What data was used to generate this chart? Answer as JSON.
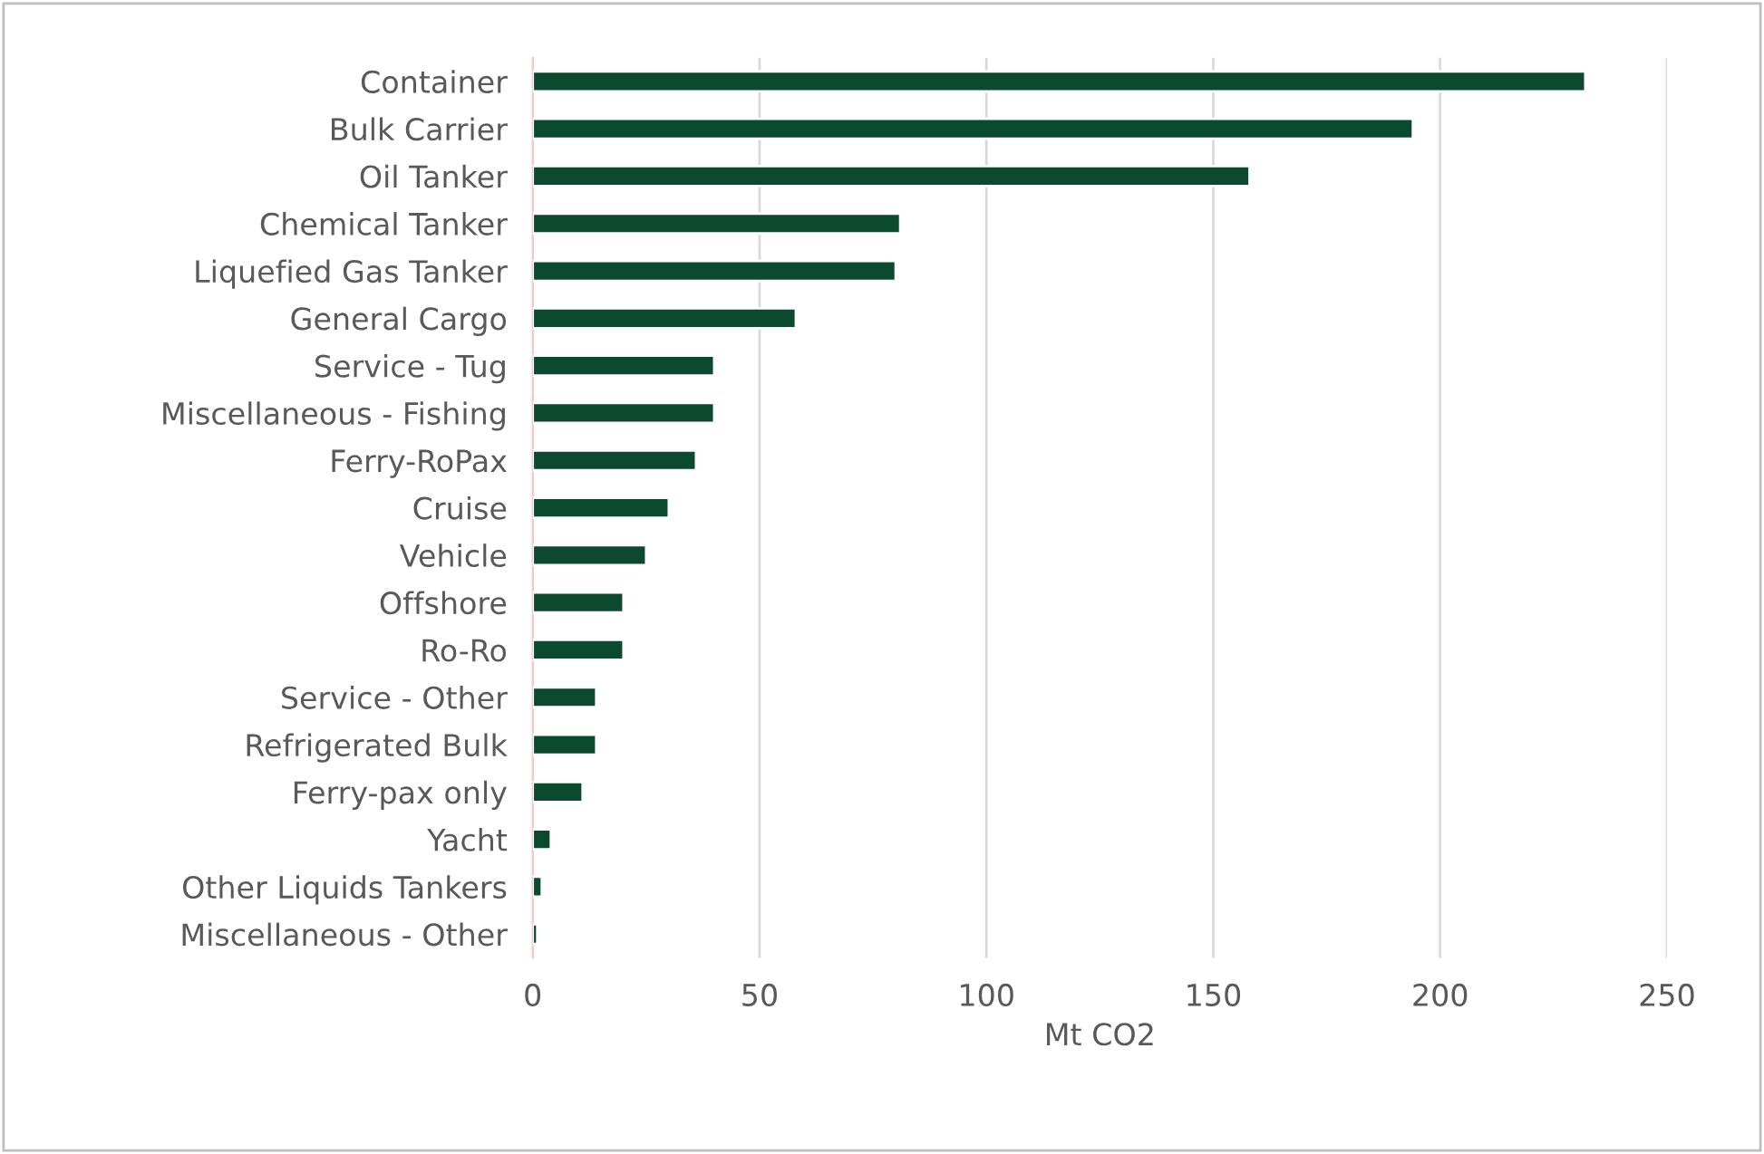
{
  "chart_data": {
    "type": "bar",
    "orientation": "horizontal",
    "xlabel": "Mt CO2",
    "categories": [
      "Container",
      "Bulk Carrier",
      "Oil Tanker",
      "Chemical Tanker",
      "Liquefied Gas Tanker",
      "General Cargo",
      "Service - Tug",
      "Miscellaneous - Fishing",
      "Ferry-RoPax",
      "Cruise",
      "Vehicle",
      "Offshore",
      "Ro-Ro",
      "Service - Other",
      "Refrigerated Bulk",
      "Ferry-pax only",
      "Yacht",
      "Other Liquids Tankers",
      "Miscellaneous - Other"
    ],
    "values": [
      232,
      194,
      158,
      81,
      80,
      58,
      40,
      40,
      36,
      30,
      25,
      20,
      20,
      14,
      14,
      11,
      4,
      2,
      1
    ],
    "color": "#0b4a2e",
    "xlim": [
      0,
      250
    ],
    "xticks": [
      0,
      50,
      100,
      150,
      200,
      250
    ],
    "grid": "x"
  }
}
